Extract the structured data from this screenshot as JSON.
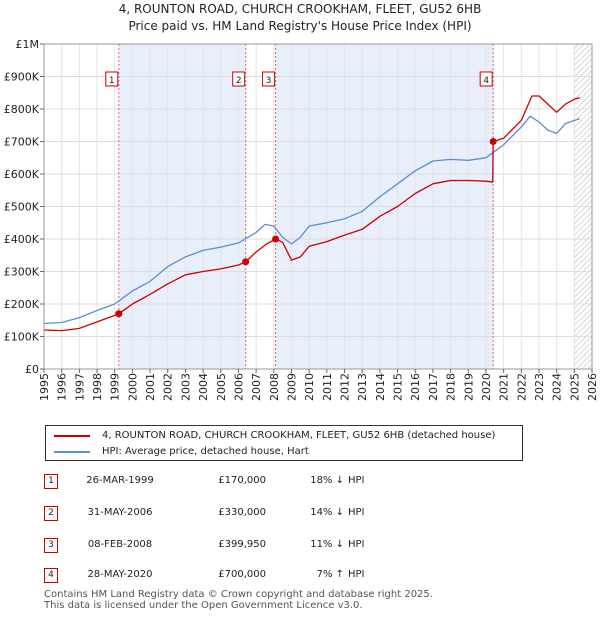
{
  "header": {
    "title": "4, ROUNTON ROAD, CHURCH CROOKHAM, FLEET, GU52 6HB",
    "subtitle": "Price paid vs. HM Land Registry's House Price Index (HPI)"
  },
  "colors": {
    "property": "#cc0000",
    "hpi": "#5b8fd0",
    "shade": "#e8eefa",
    "hatch": "#bbbbbb",
    "marker_line": "#e06666"
  },
  "chart_data": {
    "type": "line",
    "title": "4, ROUNTON ROAD, CHURCH CROOKHAM, FLEET, GU52 6HB",
    "subtitle": "Price paid vs. HM Land Registry's House Price Index (HPI)",
    "xlabel": "",
    "ylabel": "",
    "xlim": [
      1995,
      2026
    ],
    "ylim": [
      0,
      1000000
    ],
    "y_ticks": [
      {
        "value": 0,
        "label": "£0"
      },
      {
        "value": 100000,
        "label": "£100K"
      },
      {
        "value": 200000,
        "label": "£200K"
      },
      {
        "value": 300000,
        "label": "£300K"
      },
      {
        "value": 400000,
        "label": "£400K"
      },
      {
        "value": 500000,
        "label": "£500K"
      },
      {
        "value": 600000,
        "label": "£600K"
      },
      {
        "value": 700000,
        "label": "£700K"
      },
      {
        "value": 800000,
        "label": "£800K"
      },
      {
        "value": 900000,
        "label": "£900K"
      },
      {
        "value": 1000000,
        "label": "£1M"
      }
    ],
    "x_ticks": [
      "1995",
      "1996",
      "1997",
      "1998",
      "1999",
      "2000",
      "2001",
      "2002",
      "2003",
      "2004",
      "2005",
      "2006",
      "2007",
      "2008",
      "2009",
      "2010",
      "2011",
      "2012",
      "2013",
      "2014",
      "2015",
      "2016",
      "2017",
      "2018",
      "2019",
      "2020",
      "2021",
      "2022",
      "2023",
      "2024",
      "2025",
      "2026"
    ],
    "shaded_periods": [
      [
        1999.23,
        2006.41
      ],
      [
        2008.1,
        2020.41
      ]
    ],
    "hatched_from": 2025.0,
    "series": [
      {
        "name": "4, ROUNTON ROAD, CHURCH CROOKHAM, FLEET, GU52 6HB (detached house)",
        "points": [
          [
            1995.0,
            120000
          ],
          [
            1996.0,
            118000
          ],
          [
            1997.0,
            125000
          ],
          [
            1998.0,
            145000
          ],
          [
            1999.0,
            165000
          ],
          [
            1999.23,
            170000
          ],
          [
            2000.0,
            200000
          ],
          [
            2001.0,
            230000
          ],
          [
            2002.0,
            262000
          ],
          [
            2003.0,
            290000
          ],
          [
            2004.0,
            300000
          ],
          [
            2005.0,
            308000
          ],
          [
            2006.0,
            320000
          ],
          [
            2006.41,
            330000
          ],
          [
            2007.0,
            360000
          ],
          [
            2007.6,
            385000
          ],
          [
            2008.1,
            399950
          ],
          [
            2008.5,
            390000
          ],
          [
            2009.0,
            335000
          ],
          [
            2009.5,
            345000
          ],
          [
            2010.0,
            378000
          ],
          [
            2011.0,
            392000
          ],
          [
            2012.0,
            412000
          ],
          [
            2013.0,
            430000
          ],
          [
            2014.0,
            470000
          ],
          [
            2015.0,
            500000
          ],
          [
            2016.0,
            540000
          ],
          [
            2017.0,
            570000
          ],
          [
            2018.0,
            580000
          ],
          [
            2019.0,
            580000
          ],
          [
            2020.0,
            578000
          ],
          [
            2020.38,
            575000
          ],
          [
            2020.41,
            700000
          ],
          [
            2021.0,
            710000
          ],
          [
            2022.0,
            765000
          ],
          [
            2022.6,
            840000
          ],
          [
            2023.0,
            840000
          ],
          [
            2023.5,
            815000
          ],
          [
            2024.0,
            790000
          ],
          [
            2024.5,
            815000
          ],
          [
            2025.0,
            830000
          ],
          [
            2025.3,
            835000
          ]
        ]
      },
      {
        "name": "HPI: Average price, detached house, Hart",
        "points": [
          [
            1995.0,
            140000
          ],
          [
            1996.0,
            143000
          ],
          [
            1997.0,
            158000
          ],
          [
            1998.0,
            180000
          ],
          [
            1999.0,
            200000
          ],
          [
            2000.0,
            240000
          ],
          [
            2001.0,
            270000
          ],
          [
            2002.0,
            315000
          ],
          [
            2003.0,
            345000
          ],
          [
            2004.0,
            365000
          ],
          [
            2005.0,
            375000
          ],
          [
            2006.0,
            388000
          ],
          [
            2007.0,
            420000
          ],
          [
            2007.5,
            445000
          ],
          [
            2008.0,
            440000
          ],
          [
            2008.5,
            405000
          ],
          [
            2009.0,
            385000
          ],
          [
            2009.5,
            405000
          ],
          [
            2010.0,
            440000
          ],
          [
            2011.0,
            450000
          ],
          [
            2012.0,
            462000
          ],
          [
            2013.0,
            485000
          ],
          [
            2014.0,
            530000
          ],
          [
            2015.0,
            570000
          ],
          [
            2016.0,
            610000
          ],
          [
            2017.0,
            640000
          ],
          [
            2018.0,
            645000
          ],
          [
            2019.0,
            642000
          ],
          [
            2020.0,
            650000
          ],
          [
            2021.0,
            690000
          ],
          [
            2022.0,
            745000
          ],
          [
            2022.5,
            778000
          ],
          [
            2023.0,
            760000
          ],
          [
            2023.5,
            735000
          ],
          [
            2024.0,
            725000
          ],
          [
            2024.5,
            755000
          ],
          [
            2025.0,
            765000
          ],
          [
            2025.3,
            770000
          ]
        ]
      }
    ],
    "markers": [
      {
        "label": "1",
        "x": 1999.23,
        "y": 170000
      },
      {
        "label": "2",
        "x": 2006.41,
        "y": 330000
      },
      {
        "label": "3",
        "x": 2008.1,
        "y": 399950
      },
      {
        "label": "4",
        "x": 2020.41,
        "y": 700000
      }
    ]
  },
  "legend": {
    "property_label": "4, ROUNTON ROAD, CHURCH CROOKHAM, FLEET, GU52 6HB (detached house)",
    "hpi_label": "HPI: Average price, detached house, Hart"
  },
  "sales": [
    {
      "num": "1",
      "date": "26-MAR-1999",
      "price": "£170,000",
      "pct": "18% ↓",
      "hpi": "HPI"
    },
    {
      "num": "2",
      "date": "31-MAY-2006",
      "price": "£330,000",
      "pct": "14% ↓",
      "hpi": "HPI"
    },
    {
      "num": "3",
      "date": "08-FEB-2008",
      "price": "£399,950",
      "pct": "11% ↓",
      "hpi": "HPI"
    },
    {
      "num": "4",
      "date": "28-MAY-2020",
      "price": "£700,000",
      "pct": "7% ↑",
      "hpi": "HPI"
    }
  ],
  "footer": {
    "line1": "Contains HM Land Registry data © Crown copyright and database right 2025.",
    "line2": "This data is licensed under the Open Government Licence v3.0."
  }
}
